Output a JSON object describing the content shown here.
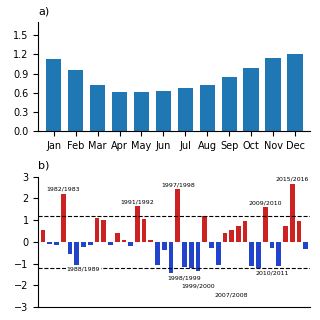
{
  "chart_data": [
    {
      "type": "bar",
      "title": "a)",
      "categories": [
        "Jan",
        "Feb",
        "Mar",
        "Apr",
        "May",
        "Jun",
        "Jul",
        "Aug",
        "Sep",
        "Oct",
        "Nov",
        "Dec"
      ],
      "values": [
        1.13,
        0.96,
        0.72,
        0.62,
        0.62,
        0.63,
        0.67,
        0.72,
        0.84,
        0.98,
        1.14,
        1.2
      ],
      "ylim": [
        0.0,
        1.7
      ],
      "yticks": [
        0.0,
        0.3,
        0.6,
        0.9,
        1.2,
        1.5
      ]
    },
    {
      "type": "bar",
      "title": "b)",
      "categories": [
        null,
        null,
        null,
        null,
        null,
        null,
        null,
        null,
        null,
        null,
        null,
        null,
        null,
        null,
        null,
        null,
        null,
        null,
        null,
        null,
        null,
        null,
        null,
        null,
        null,
        null,
        null,
        null,
        null,
        null,
        null,
        null,
        null,
        null,
        null,
        null,
        null,
        null,
        null,
        null
      ],
      "values": [
        0.55,
        -0.08,
        -0.12,
        2.22,
        -0.55,
        -1.05,
        -0.22,
        -0.15,
        1.1,
        1.02,
        -0.15,
        0.42,
        0.1,
        -0.18,
        1.65,
        1.05,
        0.08,
        -1.05,
        -0.38,
        -1.45,
        2.42,
        -1.15,
        -1.22,
        -1.35,
        1.18,
        -0.28,
        -1.05,
        0.42,
        0.55,
        0.72,
        0.98,
        -1.1,
        -1.22,
        1.6,
        -0.28,
        -1.12,
        0.72,
        2.68,
        0.95,
        -0.32
      ],
      "colors": [
        "#cc2222",
        "#2244cc",
        "#2244cc",
        "#cc2222",
        "#2244cc",
        "#2244cc",
        "#2244cc",
        "#2244cc",
        "#cc2222",
        "#cc2222",
        "#2244cc",
        "#cc2222",
        "#cc2222",
        "#2244cc",
        "#cc2222",
        "#cc2222",
        "#cc2222",
        "#2244cc",
        "#2244cc",
        "#2244cc",
        "#cc2222",
        "#2244cc",
        "#2244cc",
        "#2244cc",
        "#cc2222",
        "#2244cc",
        "#2244cc",
        "#cc2222",
        "#cc2222",
        "#cc2222",
        "#cc2222",
        "#2244cc",
        "#2244cc",
        "#cc2222",
        "#2244cc",
        "#2244cc",
        "#cc2222",
        "#cc2222",
        "#cc2222",
        "#2244cc"
      ],
      "ylim": [
        -3.0,
        3.0
      ],
      "yticks": [
        {
          "value": -3,
          "label": "−3"
        },
        {
          "value": -2,
          "label": "−2"
        },
        {
          "value": -1,
          "label": "−1"
        },
        0,
        1,
        2,
        3
      ],
      "reference_lines": [
        1.2,
        -1.2
      ],
      "tick_labels": "y",
      "annotations": [
        {
          "text": "1982/1983",
          "index": 3,
          "side": "top"
        },
        {
          "text": "1988/1989",
          "index": 6,
          "side": "bottom"
        },
        {
          "text": "1991/1992",
          "index": 14,
          "side": "top"
        },
        {
          "text": "1997/1998",
          "index": 20,
          "side": "top"
        },
        {
          "text": "1998/1999",
          "index": 21,
          "side": "bottom"
        },
        {
          "text": "1999/2000",
          "index": 23,
          "side": "bottom"
        },
        {
          "text": "2007/2008",
          "index": 28,
          "side": "bottom"
        },
        {
          "text": "2009/2010",
          "index": 33,
          "side": "top"
        },
        {
          "text": "2010/2011",
          "index": 34,
          "side": "bottom"
        },
        {
          "text": "2015/2016",
          "index": 37,
          "side": "top"
        }
      ]
    }
  ]
}
